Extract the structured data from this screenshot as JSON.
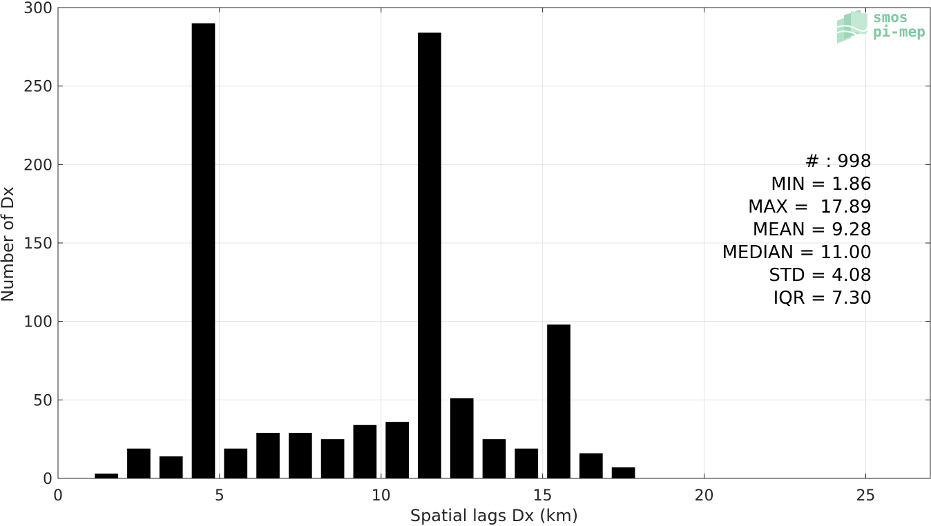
{
  "chart_data": {
    "type": "bar",
    "xlabel": "Spatial lags Dx (km)",
    "ylabel": "Number of Dx",
    "xlim": [
      0,
      27
    ],
    "ylim": [
      0,
      300
    ],
    "xticks": [
      0,
      5,
      10,
      15,
      20,
      25
    ],
    "yticks": [
      0,
      50,
      100,
      150,
      200,
      250,
      300
    ],
    "bar_width": 0.72,
    "grid": true,
    "bar_color": "#000000",
    "x": [
      1.5,
      2.5,
      3.5,
      4.5,
      5.5,
      6.5,
      7.5,
      8.5,
      9.5,
      10.5,
      11.5,
      12.5,
      13.5,
      14.5,
      15.5,
      16.5,
      17.5
    ],
    "values": [
      3,
      19,
      14,
      290,
      19,
      29,
      29,
      25,
      34,
      36,
      284,
      51,
      25,
      19,
      98,
      16,
      7
    ]
  },
  "stats": {
    "lines": [
      "# : 998",
      "MIN = 1.86",
      "MAX =  17.89",
      "MEAN = 9.28",
      "MEDIAN = 11.00",
      "STD = 4.08",
      "IQR = 7.30"
    ]
  },
  "logo": {
    "line1": "smos",
    "line2": "pi-mep",
    "color": "#7fc8a0"
  }
}
